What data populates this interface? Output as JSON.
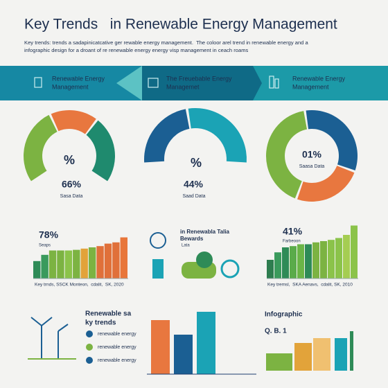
{
  "header": {
    "title": "Key Trends   in Renewable Energy Management",
    "subtitle_lines": [
      "Key trends: trends a sadapinicatcative ger rewable energy management.  The coloor arel trend in renewable energy and a",
      "infographic design for a droant of re renewable energy energy visp management in ceach roams"
    ]
  },
  "banner": [
    {
      "label_lines": [
        "Renewable Energy",
        "Management"
      ]
    },
    {
      "label_lines": [
        "The Freuebable Energy",
        "Managemet"
      ]
    },
    {
      "label_lines": [
        "Renewable Energy",
        "Management"
      ]
    }
  ],
  "gauges": [
    {
      "icon_text": "%",
      "value": "66%",
      "caption": "Sasa Data",
      "segments": [
        {
          "color": "#7cb342",
          "value": 40
        },
        {
          "color": "#e8773f",
          "value": 25
        },
        {
          "color": "#1f8a6e",
          "value": 35
        }
      ]
    },
    {
      "icon_text": "%",
      "value": "44%",
      "caption": "Saad Data",
      "segments": [
        {
          "color": "#1b5f93",
          "value": 45
        },
        {
          "color": "#1ba3b5",
          "value": 55
        }
      ]
    },
    {
      "value": "01%",
      "caption": "Saasa Data",
      "segments": [
        {
          "color": "#7cb342",
          "value": 42
        },
        {
          "color": "#1b5f93",
          "value": 33
        },
        {
          "color": "#e8773f",
          "value": 25
        }
      ]
    }
  ],
  "bar_panels": [
    {
      "value": "78%",
      "label": "Seaps",
      "caption": "Key trnds, SSCK Monteon,  cdalit,  SK, 2020",
      "ylim": [
        0,
        100
      ],
      "bars": [
        {
          "color": "#2e8b57",
          "value": 28
        },
        {
          "color": "#3a9a5c",
          "value": 38
        },
        {
          "color": "#7cb342",
          "value": 45
        },
        {
          "color": "#7cb342",
          "value": 45
        },
        {
          "color": "#8bc34a",
          "value": 45
        },
        {
          "color": "#7cb342",
          "value": 46
        },
        {
          "color": "#e2a33a",
          "value": 48
        },
        {
          "color": "#7cb342",
          "value": 50
        },
        {
          "color": "#e0703a",
          "value": 52
        },
        {
          "color": "#e0703a",
          "value": 56
        },
        {
          "color": "#e0703a",
          "value": 58
        },
        {
          "color": "#e8763a",
          "value": 66
        }
      ]
    },
    {
      "value": "41%",
      "label": "Farbeoon",
      "caption": "Key tremsl,  SKA Aenavs,  cdalit, SK, 2010",
      "ylim": [
        0,
        100
      ],
      "bars": [
        {
          "color": "#2e7d4f",
          "value": 30
        },
        {
          "color": "#3a9a5c",
          "value": 42
        },
        {
          "color": "#2e8b57",
          "value": 50
        },
        {
          "color": "#5aab4a",
          "value": 52
        },
        {
          "color": "#6bb547",
          "value": 55
        },
        {
          "color": "#2e8b57",
          "value": 55
        },
        {
          "color": "#7cb342",
          "value": 58
        },
        {
          "color": "#7cb342",
          "value": 60
        },
        {
          "color": "#8bc34a",
          "value": 62
        },
        {
          "color": "#8bc34a",
          "value": 65
        },
        {
          "color": "#a5cd52",
          "value": 70
        },
        {
          "color": "#8bc34a",
          "value": 85
        }
      ]
    }
  ],
  "middle_panel": {
    "title_lines": [
      "in Renewabla Talia",
      "Bewards"
    ],
    "note": "Lata"
  },
  "bottom_left": {
    "title_lines": [
      "Renewable sa",
      "ky trends"
    ],
    "items": [
      "renewable energy",
      "renewable energy",
      "renewable energy"
    ]
  },
  "bottom_bars": {
    "ylim": [
      0,
      100
    ],
    "bars": [
      {
        "color": "#e8773f",
        "value": 78
      },
      {
        "color": "#1b5f93",
        "value": 57
      },
      {
        "color": "#1ba3b5",
        "value": 90
      }
    ]
  },
  "bottom_right": {
    "title": "Infographic",
    "label": "Q. B. 1"
  }
}
